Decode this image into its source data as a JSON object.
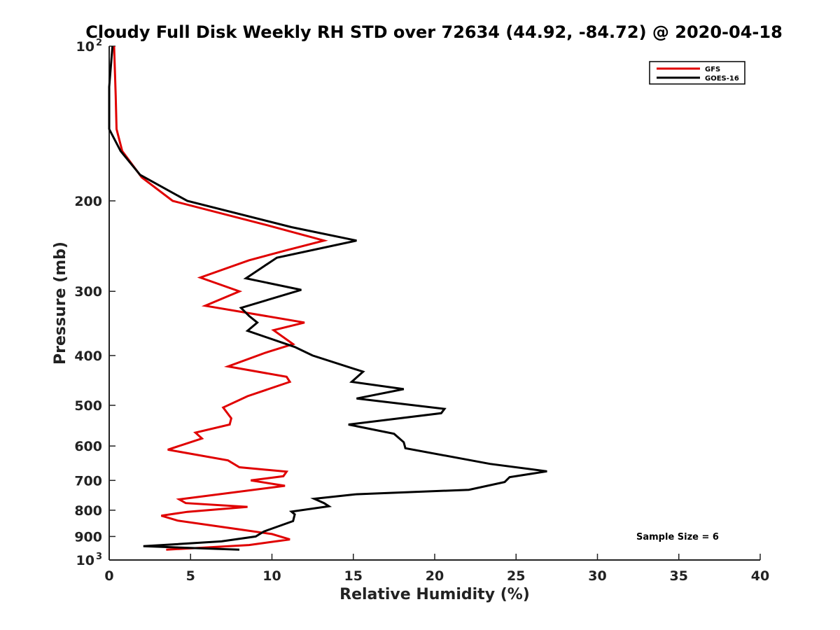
{
  "chart_data": {
    "type": "line",
    "title": "Cloudy Full Disk Weekly RH STD over 72634 (44.92, -84.72) @ 2020-04-18",
    "xlabel": "Relative Humidity (%)",
    "ylabel": "Pressure (mb)",
    "xlim": [
      0,
      40
    ],
    "ylim": [
      100,
      1000
    ],
    "yscale": "log",
    "y_reversed": true,
    "grid": false,
    "legend_position": "top-right",
    "x_ticks": [
      0,
      5,
      10,
      15,
      20,
      25,
      30,
      35,
      40
    ],
    "y_ticks": [
      {
        "value": 100,
        "label": "10",
        "sup": "2"
      },
      {
        "value": 200,
        "label": "200",
        "sup": ""
      },
      {
        "value": 300,
        "label": "300",
        "sup": ""
      },
      {
        "value": 400,
        "label": "400",
        "sup": ""
      },
      {
        "value": 500,
        "label": "500",
        "sup": ""
      },
      {
        "value": 600,
        "label": "600",
        "sup": ""
      },
      {
        "value": 700,
        "label": "700",
        "sup": ""
      },
      {
        "value": 800,
        "label": "800",
        "sup": ""
      },
      {
        "value": 900,
        "label": "900",
        "sup": ""
      },
      {
        "value": 1000,
        "label": "10",
        "sup": "3"
      }
    ],
    "annotation": "Sample Size = 6",
    "series": [
      {
        "name": "GFS",
        "color": "#e00000",
        "points": [
          [
            0.3,
            100
          ],
          [
            0.4,
            125
          ],
          [
            0.45,
            145
          ],
          [
            0.8,
            160
          ],
          [
            2.0,
            180
          ],
          [
            3.9,
            200
          ],
          [
            9.7,
            223
          ],
          [
            13.2,
            239
          ],
          [
            10.8,
            250
          ],
          [
            8.6,
            261
          ],
          [
            5.6,
            282
          ],
          [
            8.0,
            300
          ],
          [
            5.9,
            320
          ],
          [
            12.0,
            345
          ],
          [
            10.1,
            357
          ],
          [
            11.3,
            380
          ],
          [
            9.6,
            395
          ],
          [
            7.3,
            420
          ],
          [
            10.9,
            440
          ],
          [
            11.1,
            450
          ],
          [
            8.5,
            480
          ],
          [
            7.0,
            505
          ],
          [
            7.5,
            530
          ],
          [
            7.4,
            545
          ],
          [
            5.3,
            565
          ],
          [
            5.7,
            580
          ],
          [
            3.6,
            610
          ],
          [
            7.3,
            640
          ],
          [
            8.0,
            660
          ],
          [
            10.9,
            673
          ],
          [
            10.7,
            687
          ],
          [
            8.7,
            700
          ],
          [
            10.8,
            717
          ],
          [
            4.3,
            762
          ],
          [
            4.7,
            775
          ],
          [
            8.5,
            788
          ],
          [
            4.8,
            806
          ],
          [
            3.2,
            820
          ],
          [
            4.2,
            838
          ],
          [
            7.8,
            870
          ],
          [
            10.0,
            890
          ],
          [
            11.1,
            912
          ],
          [
            8.6,
            935
          ],
          [
            3.5,
            955
          ]
        ]
      },
      {
        "name": "GOES-16",
        "color": "#000000",
        "points": [
          [
            0.2,
            100
          ],
          [
            0.0,
            120
          ],
          [
            0.0,
            145
          ],
          [
            0.7,
            160
          ],
          [
            1.9,
            178
          ],
          [
            4.8,
            200
          ],
          [
            11.2,
            225
          ],
          [
            15.2,
            239
          ],
          [
            10.3,
            258
          ],
          [
            8.4,
            283
          ],
          [
            11.8,
            298
          ],
          [
            8.1,
            323
          ],
          [
            8.6,
            335
          ],
          [
            9.1,
            345
          ],
          [
            8.5,
            358
          ],
          [
            11.4,
            385
          ],
          [
            12.5,
            400
          ],
          [
            15.6,
            430
          ],
          [
            14.9,
            450
          ],
          [
            18.1,
            465
          ],
          [
            15.2,
            485
          ],
          [
            20.6,
            508
          ],
          [
            20.4,
            518
          ],
          [
            14.7,
            545
          ],
          [
            17.5,
            568
          ],
          [
            18.1,
            590
          ],
          [
            18.2,
            606
          ],
          [
            23.4,
            650
          ],
          [
            26.9,
            672
          ],
          [
            24.6,
            690
          ],
          [
            24.3,
            705
          ],
          [
            22.1,
            730
          ],
          [
            15.1,
            745
          ],
          [
            12.6,
            760
          ],
          [
            13.2,
            775
          ],
          [
            13.5,
            786
          ],
          [
            11.2,
            805
          ],
          [
            11.4,
            815
          ],
          [
            11.3,
            840
          ],
          [
            9.5,
            880
          ],
          [
            9.0,
            900
          ],
          [
            6.9,
            920
          ],
          [
            2.1,
            940
          ],
          [
            8.0,
            955
          ]
        ]
      }
    ]
  }
}
